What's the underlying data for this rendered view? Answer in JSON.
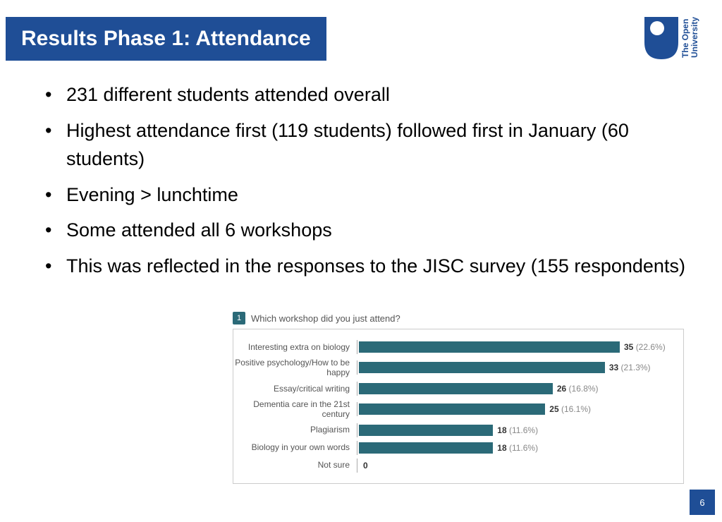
{
  "title": "Results Phase 1: Attendance",
  "logo": {
    "line1": "The Open",
    "line2": "University",
    "brand_color": "#1f4e96"
  },
  "bullets": [
    "231 different students attended overall",
    "Highest attendance first (119 students) followed first in January (60 students)",
    "Evening > lunchtime",
    "Some attended all 6 workshops",
    "This was reflected in the responses to the JISC survey (155 respondents)"
  ],
  "chart": {
    "type": "bar",
    "question_number": "1",
    "question": "Which workshop did you just attend?",
    "max_value": 35,
    "bar_color": "#2b6a78",
    "border_color": "#cccccc",
    "label_fontsize": 12,
    "rows": [
      {
        "label": "Interesting extra on biology",
        "value": 35,
        "pct": "22.6%"
      },
      {
        "label": "Positive psychology/How to be happy",
        "value": 33,
        "pct": "21.3%"
      },
      {
        "label": "Essay/critical writing",
        "value": 26,
        "pct": "16.8%"
      },
      {
        "label": "Dementia care in the 21st century",
        "value": 25,
        "pct": "16.1%"
      },
      {
        "label": "Plagiarism",
        "value": 18,
        "pct": "11.6%"
      },
      {
        "label": "Biology in your own words",
        "value": 18,
        "pct": "11.6%"
      },
      {
        "label": "Not sure",
        "value": 0,
        "pct": ""
      }
    ]
  },
  "page_number": "6",
  "colors": {
    "title_bg": "#1f4e96",
    "title_fg": "#ffffff",
    "body_text": "#000000",
    "page_bg": "#ffffff"
  }
}
